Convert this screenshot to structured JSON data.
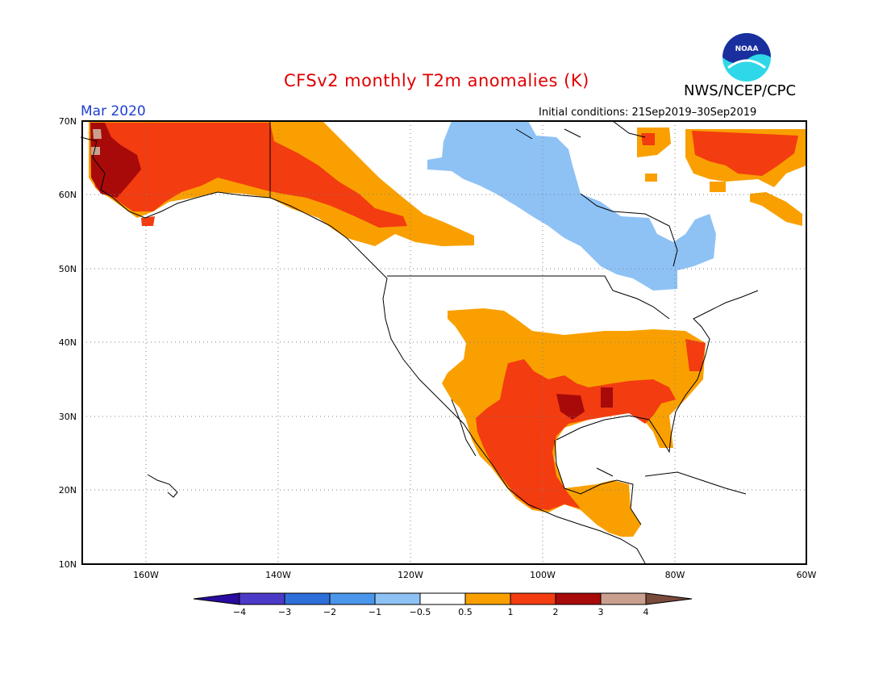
{
  "title": "CFSv2 monthly T2m anomalies (K)",
  "month": "Mar 2020",
  "initial_conditions": "Initial conditions: 21Sep2019–30Sep2019",
  "agency": "NWS/NCEP/CPC",
  "logo_text": "NOAA",
  "lat_labels": [
    "70N",
    "60N",
    "50N",
    "40N",
    "30N",
    "20N",
    "10N"
  ],
  "lon_labels": [
    "160W",
    "140W",
    "120W",
    "100W",
    "80W",
    "60W"
  ],
  "colorbar": {
    "labels": [
      "−4",
      "−3",
      "−2",
      "−1",
      "−0.5",
      "0.5",
      "1",
      "2",
      "3",
      "4"
    ],
    "colors": [
      "#2a0aa0",
      "#4b3ac8",
      "#2e6ed8",
      "#4a96ea",
      "#8ec2f5",
      "#ffffff",
      "#f9a000",
      "#f33c10",
      "#a80a0a",
      "#c9a08e",
      "#7a4a3a"
    ]
  }
}
